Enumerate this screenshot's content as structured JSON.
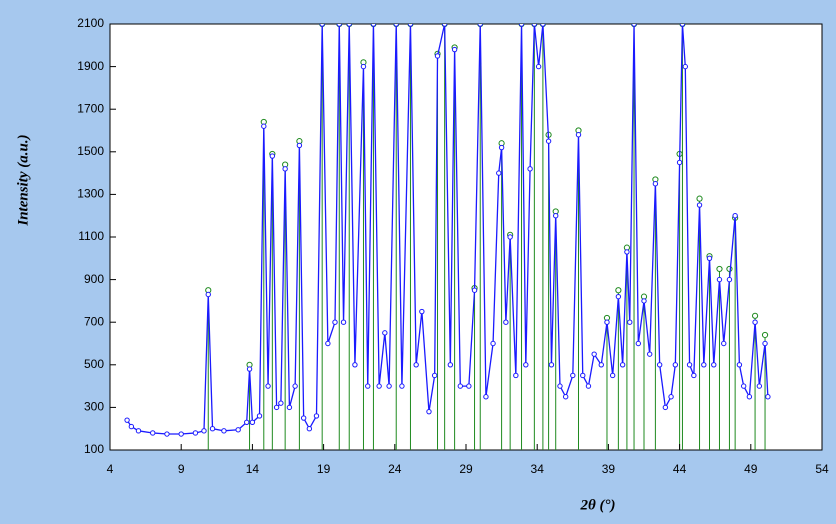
{
  "chart_data": {
    "type": "line",
    "x_label": "2θ (°)",
    "y_label": "Intensity (a.u.)",
    "xlim": [
      4,
      54
    ],
    "xticks": [
      4,
      9,
      14,
      19,
      24,
      29,
      34,
      39,
      44,
      49,
      54
    ],
    "ylim": [
      100,
      2100
    ],
    "yticks": [
      100,
      300,
      500,
      700,
      900,
      1100,
      1300,
      1500,
      1700,
      1900,
      2100
    ],
    "series": [
      {
        "mode": "line-markers",
        "color": "#1a1aff",
        "x": [
          5.2,
          5.5,
          6,
          7,
          8,
          9,
          10,
          10.6,
          10.9,
          11.2,
          12,
          13,
          13.6,
          13.8,
          14,
          14.5,
          14.8,
          15.1,
          15.4,
          15.7,
          16,
          16.3,
          16.6,
          17,
          17.3,
          17.6,
          18,
          18.5,
          18.9,
          19.3,
          19.8,
          20.1,
          20.4,
          20.8,
          21.2,
          21.8,
          22.1,
          22.5,
          22.9,
          23.3,
          23.6,
          24.1,
          24.5,
          25.1,
          25.5,
          25.9,
          26.4,
          26.8,
          27,
          27.5,
          27.9,
          28.2,
          28.6,
          29.2,
          29.6,
          30,
          30.4,
          30.9,
          31.3,
          31.5,
          31.8,
          32.1,
          32.5,
          32.9,
          33.2,
          33.5,
          33.8,
          34.1,
          34.4,
          34.8,
          35,
          35.3,
          35.6,
          36,
          36.5,
          36.9,
          37.2,
          37.6,
          38,
          38.5,
          38.9,
          39.3,
          39.7,
          40,
          40.3,
          40.5,
          40.8,
          41.1,
          41.5,
          41.9,
          42.3,
          42.6,
          43,
          43.4,
          43.7,
          44,
          44.2,
          44.4,
          44.7,
          45,
          45.4,
          45.7,
          46.1,
          46.4,
          46.8,
          47.1,
          47.5,
          47.9,
          48.2,
          48.5,
          48.9,
          49.3,
          49.6,
          50,
          50.2
        ],
        "values": [
          240,
          210,
          190,
          180,
          175,
          175,
          180,
          190,
          830,
          200,
          190,
          195,
          230,
          480,
          230,
          260,
          1620,
          400,
          1480,
          300,
          320,
          1420,
          300,
          400,
          1530,
          250,
          200,
          260,
          2100,
          600,
          700,
          2100,
          700,
          2100,
          500,
          1900,
          400,
          2100,
          400,
          650,
          400,
          2100,
          400,
          2100,
          500,
          750,
          280,
          450,
          1950,
          2100,
          500,
          1980,
          400,
          400,
          850,
          2100,
          350,
          600,
          1400,
          1520,
          700,
          1100,
          450,
          2100,
          500,
          1420,
          2100,
          1900,
          2100,
          1550,
          500,
          1200,
          400,
          350,
          450,
          1580,
          450,
          400,
          550,
          500,
          700,
          450,
          820,
          500,
          1030,
          700,
          2100,
          600,
          800,
          550,
          1350,
          500,
          300,
          350,
          500,
          1450,
          2100,
          1900,
          500,
          450,
          1250,
          500,
          1000,
          500,
          900,
          600,
          900,
          1200,
          500,
          400,
          350,
          700,
          400,
          600,
          350
        ]
      },
      {
        "mode": "sticks",
        "color": "#1f8a1f",
        "x": [
          10.9,
          13.8,
          14.8,
          15.4,
          16.3,
          17.3,
          18.9,
          20.1,
          20.8,
          21.8,
          22.5,
          24.1,
          25.1,
          27,
          27.5,
          28.2,
          29.6,
          30,
          31.5,
          32.1,
          32.9,
          33.8,
          34.4,
          34.8,
          35.3,
          36.9,
          38.9,
          39.7,
          40.3,
          40.8,
          41.5,
          42.3,
          44,
          44.2,
          45.4,
          46.1,
          46.8,
          47.5,
          47.9,
          49.3,
          50
        ],
        "values": [
          850,
          500,
          1640,
          1490,
          1440,
          1550,
          2100,
          2100,
          2100,
          1920,
          2100,
          2100,
          2100,
          1960,
          2100,
          1990,
          860,
          2100,
          1540,
          1110,
          2100,
          2100,
          2100,
          1580,
          1220,
          1600,
          720,
          850,
          1050,
          2100,
          820,
          1370,
          1490,
          2100,
          1280,
          1010,
          950,
          950,
          1190,
          730,
          640
        ]
      }
    ]
  }
}
